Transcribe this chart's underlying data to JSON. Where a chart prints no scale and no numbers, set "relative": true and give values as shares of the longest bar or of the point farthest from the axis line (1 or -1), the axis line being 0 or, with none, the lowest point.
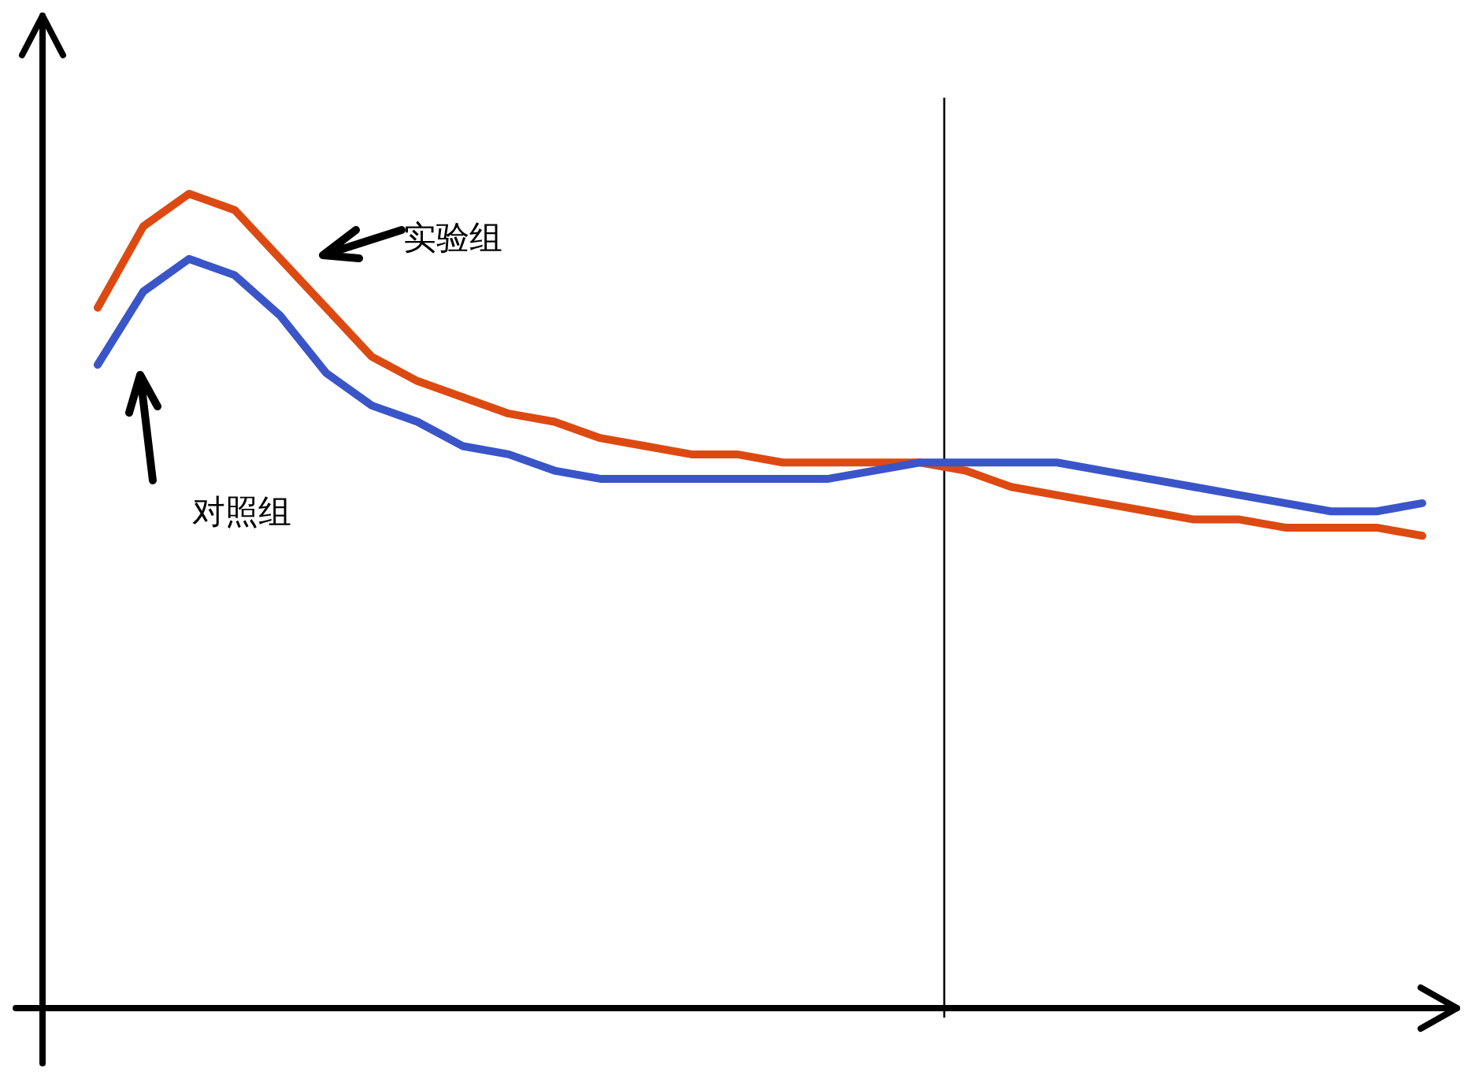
{
  "chart_data": {
    "type": "line",
    "relative": true,
    "line_style": "solid",
    "categories": [
      null,
      null,
      null,
      null,
      null,
      null,
      null,
      null,
      null,
      null,
      null,
      null,
      null,
      null,
      null,
      null,
      null,
      null,
      null,
      null,
      null,
      null,
      null,
      null,
      null,
      null,
      null,
      null,
      null,
      null
    ],
    "series": [
      {
        "color": "#dc4a12",
        "values": [
          0.86,
          0.96,
          1,
          0.98,
          0.92,
          0.86,
          0.8,
          0.77,
          0.75,
          0.73,
          0.72,
          0.7,
          0.69,
          0.68,
          0.68,
          0.67,
          0.67,
          0.67,
          0.67,
          0.66,
          0.64,
          0.63,
          0.62,
          0.61,
          0.6,
          0.6,
          0.59,
          0.59,
          0.59,
          0.58
        ]
      },
      {
        "color": "#3a55c8",
        "values": [
          0.79,
          0.88,
          0.92,
          0.9,
          0.85,
          0.78,
          0.74,
          0.72,
          0.69,
          0.68,
          0.66,
          0.65,
          0.65,
          0.65,
          0.65,
          0.65,
          0.65,
          0.66,
          0.67,
          0.67,
          0.67,
          0.67,
          0.66,
          0.65,
          0.64,
          0.63,
          0.62,
          0.61,
          0.61,
          0.62
        ]
      }
    ],
    "ref_lines": [
      {
        "axis": "x",
        "color": "#000000"
      }
    ],
    "annotations": [
      "实验组",
      "对照组"
    ]
  }
}
